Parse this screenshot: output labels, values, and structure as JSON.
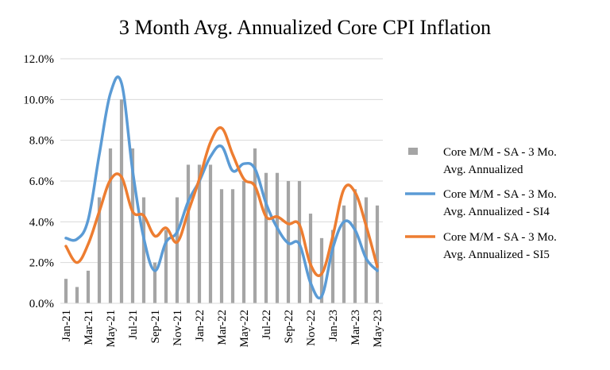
{
  "chart_data": {
    "type": "bar",
    "title": "3 Month Avg. Annualized Core CPI Inflation",
    "xlabel": "",
    "ylabel": "",
    "ylim": [
      0,
      12
    ],
    "yticks": [
      0,
      2,
      4,
      6,
      8,
      10,
      12
    ],
    "ytick_labels": [
      "0.0%",
      "2.0%",
      "4.0%",
      "6.0%",
      "8.0%",
      "10.0%",
      "12.0%"
    ],
    "grid": true,
    "legend_position": "right",
    "categories": [
      "Jan-21",
      "Feb-21",
      "Mar-21",
      "Apr-21",
      "May-21",
      "Jun-21",
      "Jul-21",
      "Aug-21",
      "Sep-21",
      "Oct-21",
      "Nov-21",
      "Dec-21",
      "Jan-22",
      "Feb-22",
      "Mar-22",
      "Apr-22",
      "May-22",
      "Jun-22",
      "Jul-22",
      "Aug-22",
      "Sep-22",
      "Oct-22",
      "Nov-22",
      "Dec-22",
      "Jan-23",
      "Feb-23",
      "Mar-23",
      "Apr-23",
      "May-23"
    ],
    "xtick_labels": [
      "Jan-21",
      "",
      "Mar-21",
      "",
      "May-21",
      "",
      "Jul-21",
      "",
      "Sep-21",
      "",
      "Nov-21",
      "",
      "Jan-22",
      "",
      "Mar-22",
      "",
      "May-22",
      "",
      "Jul-22",
      "",
      "Sep-22",
      "",
      "Nov-22",
      "",
      "Jan-23",
      "",
      "Mar-23",
      "",
      "May-23"
    ],
    "series": [
      {
        "name": "Core M/M - SA - 3 Mo. Avg. Annualized",
        "legend_lines": [
          "Core M/M - SA - 3 Mo.",
          "Avg. Annualized"
        ],
        "kind": "bar",
        "color": "#a5a5a5",
        "values": [
          1.2,
          0.8,
          1.6,
          5.2,
          7.6,
          10.0,
          7.6,
          5.2,
          2.0,
          3.6,
          5.2,
          6.8,
          6.8,
          6.8,
          5.6,
          5.6,
          6.0,
          7.6,
          6.4,
          6.4,
          6.0,
          6.0,
          4.4,
          3.2,
          3.6,
          4.8,
          5.6,
          5.2,
          4.8
        ]
      },
      {
        "name": "Core M/M - SA - 3 Mo. Avg. Annualized - SI4",
        "legend_lines": [
          "Core M/M - SA - 3 Mo.",
          "Avg. Annualized - SI4"
        ],
        "kind": "line",
        "color": "#5b9bd5",
        "values": [
          3.2,
          3.15,
          4.1,
          7.3,
          10.3,
          10.8,
          6.5,
          3.2,
          1.6,
          3.0,
          3.5,
          5.0,
          6.0,
          7.2,
          7.7,
          6.5,
          6.85,
          6.6,
          4.9,
          3.7,
          2.95,
          2.9,
          1.0,
          0.35,
          2.7,
          4.0,
          3.6,
          2.2,
          1.6
        ]
      },
      {
        "name": "Core M/M - SA - 3 Mo. Avg. Annualized - SI5",
        "legend_lines": [
          "Core M/M - SA - 3 Mo.",
          "Avg. Annualized - SI5"
        ],
        "kind": "line",
        "color": "#ed7d31",
        "values": [
          2.8,
          2.0,
          2.9,
          4.5,
          6.05,
          6.2,
          4.5,
          4.3,
          3.3,
          3.7,
          3.0,
          4.5,
          6.1,
          7.9,
          8.6,
          7.3,
          6.1,
          5.75,
          4.25,
          4.25,
          3.9,
          3.85,
          1.9,
          1.45,
          3.3,
          5.6,
          5.45,
          3.8,
          1.8
        ]
      }
    ]
  }
}
